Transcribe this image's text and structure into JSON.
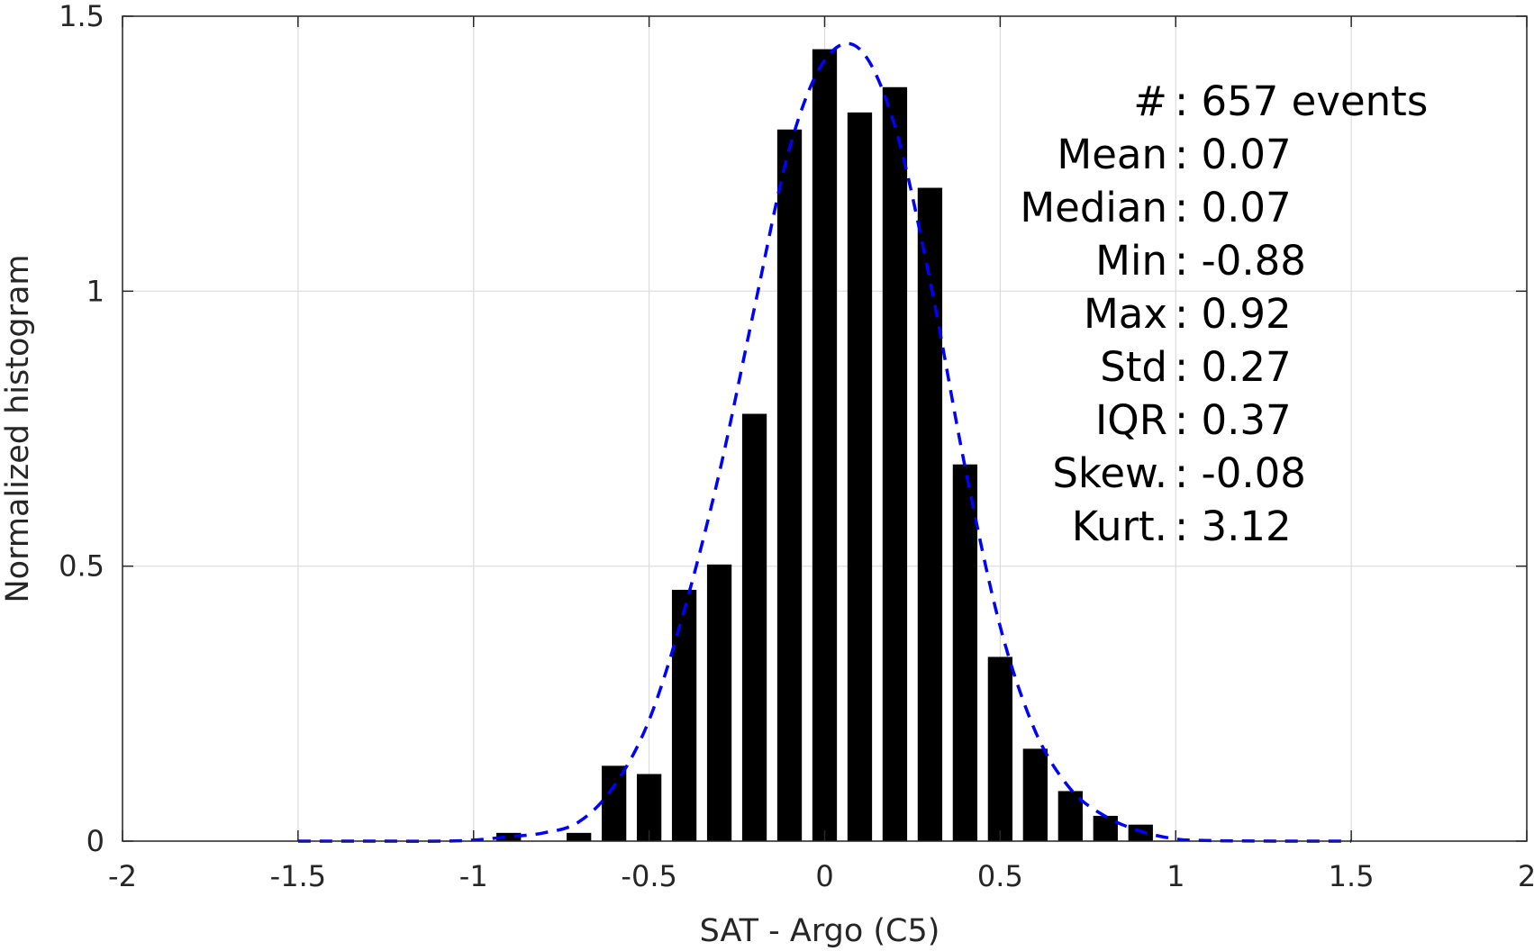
{
  "chart_data": {
    "type": "bar",
    "title": "",
    "xlabel": "SAT - Argo (C5)",
    "ylabel": "Normalized histogram",
    "xlim": [
      -2,
      2
    ],
    "ylim": [
      0,
      1.5
    ],
    "xticks": [
      -2,
      -1.5,
      -1,
      -0.5,
      0,
      0.5,
      1,
      1.5,
      2
    ],
    "xtick_labels": [
      "-2",
      "-1.5",
      "-1",
      "-0.5",
      "0",
      "0.5",
      "1",
      "1.5",
      "2"
    ],
    "yticks": [
      0,
      0.5,
      1,
      1.5
    ],
    "ytick_labels": [
      "0",
      "0.5",
      "1",
      "1.5"
    ],
    "grid": true,
    "bar_color": "#000000",
    "bar_width": 0.07,
    "bars": {
      "x": [
        -0.9,
        -0.7,
        -0.6,
        -0.5,
        -0.4,
        -0.3,
        -0.2,
        -0.1,
        0.0,
        0.1,
        0.2,
        0.3,
        0.4,
        0.5,
        0.6,
        0.7,
        0.8,
        0.9
      ],
      "values": [
        0.015,
        0.015,
        0.137,
        0.122,
        0.457,
        0.503,
        0.777,
        1.294,
        1.44,
        1.325,
        1.371,
        1.188,
        0.685,
        0.335,
        0.168,
        0.091,
        0.046,
        0.03
      ]
    },
    "curve": {
      "style": "dashed",
      "color": "#0000ff",
      "x": [
        -1.5,
        -1.3,
        -1.1,
        -1.0,
        -0.9,
        -0.8,
        -0.7,
        -0.6,
        -0.5,
        -0.4,
        -0.3,
        -0.2,
        -0.1,
        0.0,
        0.1,
        0.2,
        0.3,
        0.4,
        0.5,
        0.6,
        0.7,
        0.8,
        0.9,
        1.0,
        1.1,
        1.3,
        1.5
      ],
      "values": [
        0.0,
        0.0,
        0.0,
        0.002,
        0.008,
        0.015,
        0.035,
        0.1,
        0.22,
        0.42,
        0.67,
        0.97,
        1.26,
        1.42,
        1.44,
        1.3,
        1.02,
        0.68,
        0.39,
        0.2,
        0.095,
        0.045,
        0.018,
        0.004,
        0.001,
        0.0,
        0.0
      ]
    },
    "stats_annotation": [
      {
        "label": "#",
        "value": ": 657 events"
      },
      {
        "label": "Mean",
        "value": ": 0.07"
      },
      {
        "label": "Median",
        "value": ": 0.07"
      },
      {
        "label": "Min",
        "value": ": -0.88"
      },
      {
        "label": "Max",
        "value": ": 0.92"
      },
      {
        "label": "Std",
        "value": ": 0.27"
      },
      {
        "label": "IQR",
        "value": ": 0.37"
      },
      {
        "label": "Skew.",
        "value": ": -0.08"
      },
      {
        "label": "Kurt.",
        "value": ": 3.12"
      }
    ]
  }
}
